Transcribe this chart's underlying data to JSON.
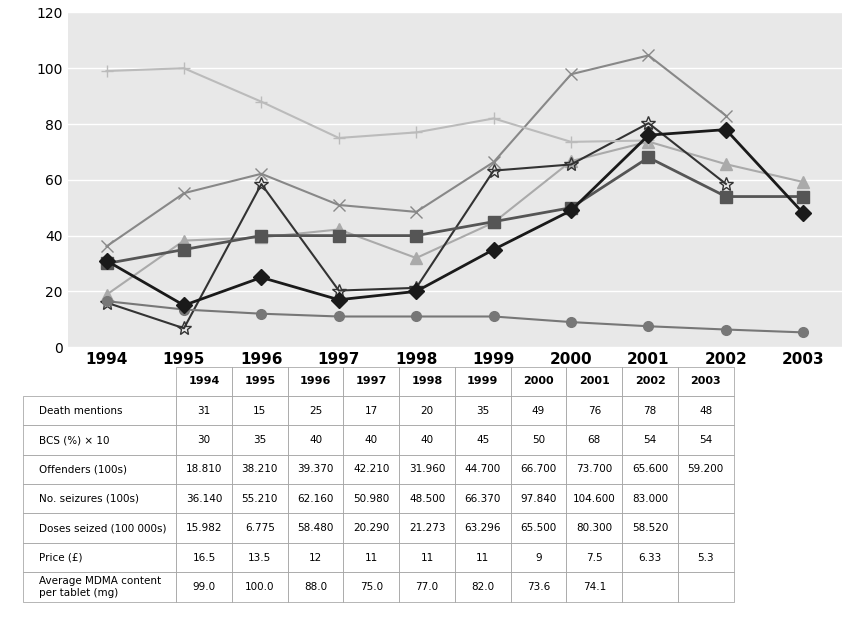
{
  "years": [
    1994,
    1995,
    1996,
    1997,
    1998,
    1999,
    2000,
    2001,
    2002,
    2003
  ],
  "series": {
    "Death mentions": {
      "values": [
        31,
        15,
        25,
        17,
        20,
        35,
        49,
        76,
        78,
        48
      ],
      "color": "#1a1a1a",
      "marker": "D",
      "linewidth": 2.0,
      "markersize": 8,
      "zorder": 5
    },
    "BCS (%) × 10": {
      "values": [
        30,
        35,
        40,
        40,
        40,
        45,
        50,
        68,
        54,
        54
      ],
      "color": "#555555",
      "marker": "s",
      "linewidth": 2.0,
      "markersize": 8,
      "zorder": 4
    },
    "Offenders (100s)": {
      "values": [
        18.81,
        38.21,
        39.37,
        42.21,
        31.96,
        44.7,
        66.7,
        73.7,
        65.6,
        59.2
      ],
      "color": "#aaaaaa",
      "marker": "^",
      "linewidth": 1.5,
      "markersize": 8,
      "zorder": 3
    },
    "No. seizures (100s)": {
      "values": [
        36.14,
        55.21,
        62.16,
        50.98,
        48.5,
        66.37,
        97.84,
        104.6,
        83.0,
        null
      ],
      "color": "#888888",
      "marker": "x",
      "linewidth": 1.5,
      "markersize": 9,
      "zorder": 3
    },
    "Doses seized (100 000s)": {
      "values": [
        15.982,
        6.775,
        58.48,
        20.29,
        21.273,
        63.296,
        65.5,
        80.3,
        58.52,
        null
      ],
      "color": "#333333",
      "marker": "*",
      "linewidth": 1.5,
      "markersize": 10,
      "zorder": 3
    },
    "Price (£)": {
      "values": [
        16.5,
        13.5,
        12,
        11,
        11,
        11,
        9,
        7.5,
        6.33,
        5.3
      ],
      "color": "#777777",
      "marker": "o",
      "linewidth": 1.5,
      "markersize": 7,
      "zorder": 3
    },
    "Average MDMA content\nper tablet (mg)": {
      "values": [
        99.0,
        100.0,
        88.0,
        75.0,
        77.0,
        82.0,
        73.6,
        74.1,
        null,
        null
      ],
      "color": "#bbbbbb",
      "marker": "+",
      "linewidth": 1.5,
      "markersize": 9,
      "zorder": 3
    }
  },
  "table_data": {
    "Death mentions": [
      "31",
      "15",
      "25",
      "17",
      "20",
      "35",
      "49",
      "76",
      "78",
      "48"
    ],
    "BCS (%) × 10": [
      "30",
      "35",
      "40",
      "40",
      "40",
      "45",
      "50",
      "68",
      "54",
      "54"
    ],
    "Offenders (100s)": [
      "18.810",
      "38.210",
      "39.370",
      "42.210",
      "31.960",
      "44.700",
      "66.700",
      "73.700",
      "65.600",
      "59.200"
    ],
    "No. seizures (100s)": [
      "36.140",
      "55.210",
      "62.160",
      "50.980",
      "48.500",
      "66.370",
      "97.840",
      "104.600",
      "83.000",
      ""
    ],
    "Doses seized (100 000s)": [
      "15.982",
      "6.775",
      "58.480",
      "20.290",
      "21.273",
      "63.296",
      "65.500",
      "80.300",
      "58.520",
      ""
    ],
    "Price (£)": [
      "16.5",
      "13.5",
      "12",
      "11",
      "11",
      "11",
      "9",
      "7.5",
      "6.33",
      "5.3"
    ],
    "Average MDMA content\nper tablet (mg)": [
      "99.0",
      "100.0",
      "88.0",
      "75.0",
      "77.0",
      "82.0",
      "73.6",
      "74.1",
      "",
      ""
    ]
  },
  "ylim": [
    0,
    120
  ],
  "yticks": [
    0,
    20,
    40,
    60,
    80,
    100,
    120
  ],
  "background_color": "#e8e8e8",
  "plot_bg_color": "#e8e8e8",
  "fig_bg_color": "#ffffff"
}
